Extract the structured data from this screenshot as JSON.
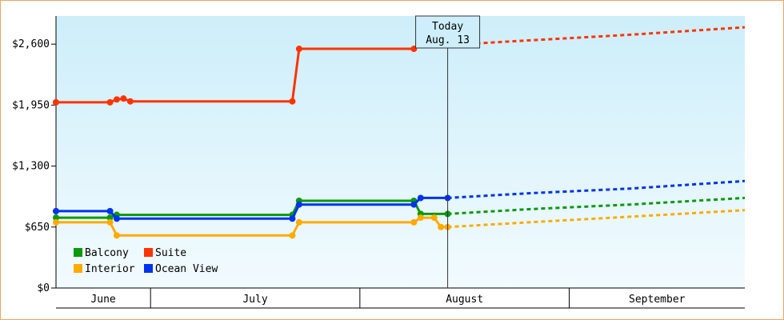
{
  "chart_data": {
    "type": "line",
    "title": "",
    "xlabel": "",
    "ylabel": "",
    "ylim": [
      0,
      2900
    ],
    "y_ticks": [
      {
        "value": 0,
        "label": "$0"
      },
      {
        "value": 650,
        "label": "$650"
      },
      {
        "value": 1300,
        "label": "$1,300"
      },
      {
        "value": 1950,
        "label": "$1,950"
      },
      {
        "value": 2600,
        "label": "$2,600"
      }
    ],
    "x_range_days": [
      0,
      102
    ],
    "months": [
      {
        "label": "June",
        "start": 0,
        "end": 14
      },
      {
        "label": "July",
        "start": 14,
        "end": 45
      },
      {
        "label": "August",
        "start": 45,
        "end": 76
      },
      {
        "label": "September",
        "start": 76,
        "end": 102
      }
    ],
    "today": {
      "line1": "Today",
      "line2": "Aug. 13",
      "x": 58
    },
    "grid": false,
    "legend_position": "bottom-left",
    "series": [
      {
        "name": "Balcony",
        "color": "#0a9a0a",
        "points": [
          [
            0,
            750
          ],
          [
            8,
            750
          ],
          [
            9,
            780
          ],
          [
            35,
            780
          ],
          [
            36,
            930
          ],
          [
            53,
            930
          ],
          [
            54,
            790
          ],
          [
            58,
            790
          ]
        ],
        "forecast": [
          [
            58,
            790
          ],
          [
            70,
            840
          ],
          [
            85,
            890
          ],
          [
            102,
            960
          ]
        ]
      },
      {
        "name": "Suite",
        "color": "#ff3300",
        "points": [
          [
            0,
            1980
          ],
          [
            8,
            1980
          ],
          [
            9,
            2010
          ],
          [
            10,
            2020
          ],
          [
            11,
            1990
          ],
          [
            35,
            1990
          ],
          [
            36,
            2550
          ],
          [
            53,
            2550
          ],
          [
            54,
            2590
          ],
          [
            56,
            2590
          ],
          [
            57,
            2590
          ],
          [
            58,
            2590
          ]
        ],
        "forecast": [
          [
            58,
            2590
          ],
          [
            70,
            2640
          ],
          [
            85,
            2700
          ],
          [
            102,
            2780
          ]
        ]
      },
      {
        "name": "Interior",
        "color": "#ffaa00",
        "points": [
          [
            0,
            700
          ],
          [
            8,
            700
          ],
          [
            9,
            560
          ],
          [
            35,
            560
          ],
          [
            36,
            700
          ],
          [
            53,
            700
          ],
          [
            54,
            750
          ],
          [
            56,
            750
          ],
          [
            57,
            650
          ],
          [
            58,
            650
          ]
        ],
        "forecast": [
          [
            58,
            650
          ],
          [
            70,
            700
          ],
          [
            85,
            760
          ],
          [
            102,
            830
          ]
        ]
      },
      {
        "name": "Ocean View",
        "color": "#0033ee",
        "points": [
          [
            0,
            820
          ],
          [
            8,
            820
          ],
          [
            9,
            740
          ],
          [
            35,
            740
          ],
          [
            36,
            890
          ],
          [
            53,
            890
          ],
          [
            54,
            960
          ],
          [
            58,
            960
          ]
        ],
        "forecast": [
          [
            58,
            960
          ],
          [
            70,
            1010
          ],
          [
            85,
            1060
          ],
          [
            102,
            1140
          ]
        ]
      }
    ]
  }
}
